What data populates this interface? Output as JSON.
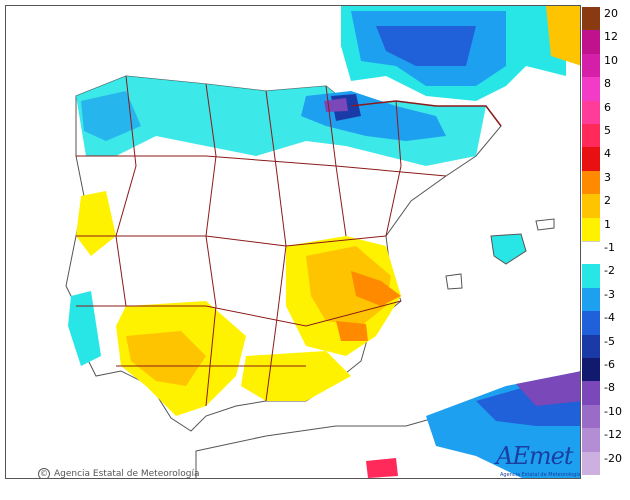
{
  "credit": {
    "symbol": "©",
    "text": "Agencia Estatal de Meteorología"
  },
  "logo": {
    "wordmark": "AEmet",
    "subtitle": "Agencia Estatal de Meteorología"
  },
  "legend": {
    "entries": [
      {
        "label": "20",
        "color": "#8a3a10"
      },
      {
        "label": "12",
        "color": "#c0128c"
      },
      {
        "label": "10",
        "color": "#d61fa8"
      },
      {
        "label": "8",
        "color": "#f23cc8"
      },
      {
        "label": "6",
        "color": "#ff3c9a"
      },
      {
        "label": "5",
        "color": "#ff2a5a"
      },
      {
        "label": "4",
        "color": "#e81010"
      },
      {
        "label": "3",
        "color": "#ff8a00"
      },
      {
        "label": "2",
        "color": "#ffc400"
      },
      {
        "label": "1",
        "color": "#fff200"
      },
      {
        "label": "-1",
        "color": "#ffffff"
      },
      {
        "label": "-2",
        "color": "#28e6e6"
      },
      {
        "label": "-3",
        "color": "#1ea0f0"
      },
      {
        "label": "-4",
        "color": "#2060d8"
      },
      {
        "label": "-5",
        "color": "#1a3aa8"
      },
      {
        "label": "-6",
        "color": "#121a70"
      },
      {
        "label": "-8",
        "color": "#7a48b8"
      },
      {
        "label": "-10",
        "color": "#9a6cc8"
      },
      {
        "label": "-12",
        "color": "#b48ed4"
      },
      {
        "label": "-20",
        "color": "#cbb0e0"
      }
    ]
  },
  "colors": {
    "land_border": "#8b1a1a",
    "sea": "#ffffff",
    "coast": "#555555"
  }
}
